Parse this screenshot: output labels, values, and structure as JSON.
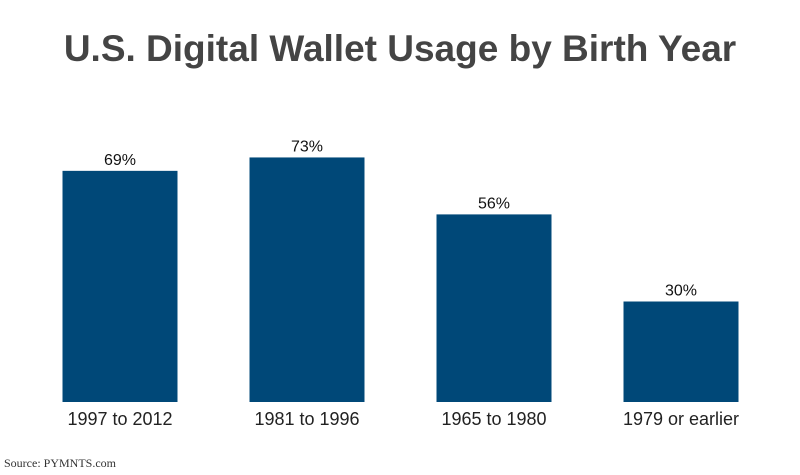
{
  "chart_data": {
    "type": "bar",
    "title": "U.S. Digital Wallet Usage by Birth Year",
    "categories": [
      "1997 to 2012",
      "1981 to 1996",
      "1965 to 1980",
      "1979 or earlier"
    ],
    "values": [
      69,
      73,
      56,
      30
    ],
    "value_labels": [
      "69%",
      "73%",
      "56%",
      "30%"
    ],
    "ylim": [
      0,
      100
    ],
    "xlabel": "",
    "ylabel": "",
    "grid": false,
    "bar_color": "#004878"
  },
  "source": "Source: PYMNTS.com"
}
